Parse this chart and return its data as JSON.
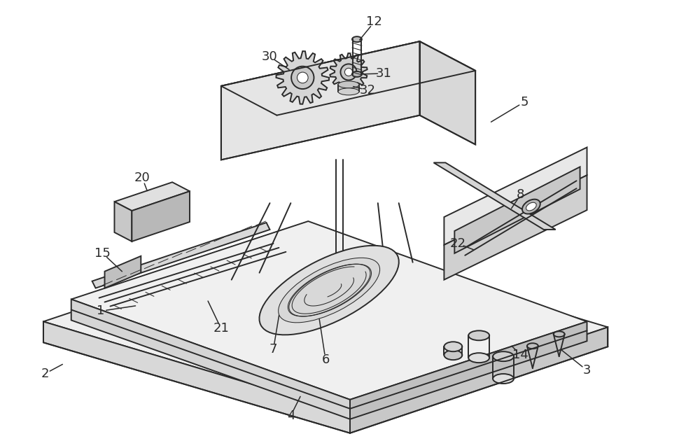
{
  "bg_color": "#ffffff",
  "line_color": "#2a2a2a",
  "lw": 1.4,
  "lw_thin": 0.75,
  "lw_thick": 2.0,
  "font_size": 13
}
